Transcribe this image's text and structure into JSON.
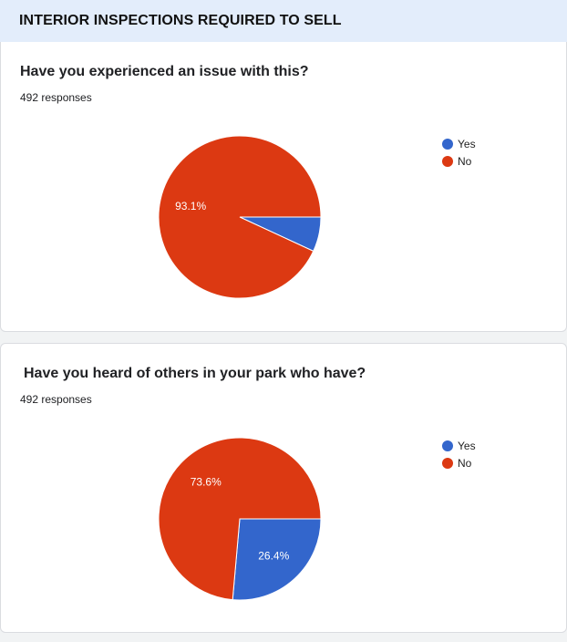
{
  "section": {
    "title": "INTERIOR INSPECTIONS REQUIRED TO SELL"
  },
  "chart_data": [
    {
      "type": "pie",
      "title": "Have you experienced an issue with this?",
      "responses_label": "492 responses",
      "categories": [
        "Yes",
        "No"
      ],
      "values": [
        6.9,
        93.1
      ],
      "labels": [
        "",
        "93.1%"
      ],
      "colors": [
        "#3366cc",
        "#dc3912"
      ],
      "legend_position": "right"
    },
    {
      "type": "pie",
      "title": "Have you heard of others in your park who have?",
      "responses_label": "492 responses",
      "categories": [
        "Yes",
        "No"
      ],
      "values": [
        26.4,
        73.6
      ],
      "labels": [
        "26.4%",
        "73.6%"
      ],
      "colors": [
        "#3366cc",
        "#dc3912"
      ],
      "legend_position": "right"
    }
  ]
}
